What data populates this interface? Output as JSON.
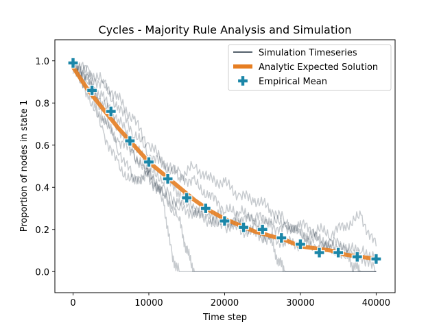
{
  "chart_data": {
    "type": "line",
    "title": "Cycles - Majority Rule Analysis and Simulation",
    "xlabel": "Time step",
    "ylabel": "Proportion of nodes in state 1",
    "xlim": [
      -2400,
      42500
    ],
    "ylim": [
      -0.1,
      1.1
    ],
    "xticks": [
      0,
      10000,
      20000,
      30000,
      40000
    ],
    "yticks": [
      0.0,
      0.2,
      0.4,
      0.6,
      0.8,
      1.0
    ],
    "xtick_labels": [
      "0",
      "10000",
      "20000",
      "30000",
      "40000"
    ],
    "ytick_labels": [
      "0.0",
      "0.2",
      "0.4",
      "0.6",
      "0.8",
      "1.0"
    ],
    "grid": false,
    "legend_position": "top-right",
    "legend": [
      {
        "label": "Simulation Timeseries",
        "kind": "line",
        "color": "#1c2b3a"
      },
      {
        "label": "Analytic Expected Solution",
        "kind": "thick-line",
        "color": "#e67e22"
      },
      {
        "label": "Empirical Mean",
        "kind": "marker",
        "color": "#1b86a8"
      }
    ],
    "simulation_series": [
      {
        "x": [
          0,
          2000,
          4000,
          6000,
          8000,
          10000,
          12000,
          13000,
          14000,
          16000,
          18000,
          20000,
          22000,
          24000,
          26000,
          28000,
          30000,
          32000,
          34000,
          36000,
          38000,
          40000
        ],
        "y": [
          0.98,
          0.9,
          0.82,
          0.72,
          0.6,
          0.5,
          0.32,
          0.08,
          0.0,
          0.0,
          0.0,
          0.0,
          0.0,
          0.0,
          0.0,
          0.0,
          0.0,
          0.0,
          0.0,
          0.0,
          0.0,
          0.0
        ]
      },
      {
        "x": [
          0,
          2000,
          4000,
          6000,
          8000,
          10000,
          12000,
          14000,
          15000,
          16000,
          18000,
          20000,
          22000,
          24000,
          26000,
          28000,
          30000,
          32000,
          34000,
          36000,
          38000,
          40000
        ],
        "y": [
          0.97,
          0.86,
          0.72,
          0.62,
          0.56,
          0.46,
          0.36,
          0.25,
          0.1,
          0.0,
          0.0,
          0.0,
          0.0,
          0.0,
          0.0,
          0.0,
          0.0,
          0.0,
          0.0,
          0.0,
          0.0,
          0.0
        ]
      },
      {
        "x": [
          0,
          2000,
          4000,
          6000,
          8000,
          10000,
          12000,
          14000,
          16000,
          18000,
          20000,
          22000,
          24000,
          26000,
          27000,
          28000,
          30000,
          32000,
          34000,
          36000,
          38000,
          40000
        ],
        "y": [
          0.99,
          0.92,
          0.74,
          0.58,
          0.44,
          0.46,
          0.38,
          0.33,
          0.3,
          0.28,
          0.25,
          0.22,
          0.2,
          0.15,
          0.06,
          0.0,
          0.0,
          0.0,
          0.0,
          0.0,
          0.0,
          0.0
        ]
      },
      {
        "x": [
          0,
          2000,
          4000,
          6000,
          8000,
          10000,
          12000,
          14000,
          16000,
          18000,
          20000,
          22000,
          24000,
          26000,
          28000,
          30000,
          32000,
          34000,
          36000,
          37000,
          38000,
          40000
        ],
        "y": [
          0.97,
          0.84,
          0.66,
          0.5,
          0.42,
          0.48,
          0.44,
          0.38,
          0.3,
          0.25,
          0.22,
          0.28,
          0.26,
          0.24,
          0.22,
          0.18,
          0.16,
          0.12,
          0.08,
          0.03,
          0.0,
          0.0
        ]
      },
      {
        "x": [
          0,
          2000,
          4000,
          6000,
          8000,
          10000,
          12000,
          14000,
          16000,
          18000,
          20000,
          22000,
          24000,
          26000,
          28000,
          30000,
          32000,
          34000,
          36000,
          38000,
          40000
        ],
        "y": [
          0.99,
          0.95,
          0.9,
          0.82,
          0.72,
          0.6,
          0.52,
          0.45,
          0.5,
          0.44,
          0.42,
          0.36,
          0.34,
          0.3,
          0.24,
          0.18,
          0.15,
          0.14,
          0.12,
          0.08,
          0.0
        ]
      },
      {
        "x": [
          0,
          2000,
          4000,
          6000,
          8000,
          10000,
          12000,
          14000,
          16000,
          18000,
          20000,
          22000,
          24000,
          26000,
          28000,
          30000,
          32000,
          34000,
          36000,
          38000,
          40000
        ],
        "y": [
          0.98,
          0.94,
          0.88,
          0.78,
          0.66,
          0.56,
          0.5,
          0.46,
          0.42,
          0.36,
          0.3,
          0.26,
          0.24,
          0.22,
          0.2,
          0.22,
          0.2,
          0.18,
          0.22,
          0.26,
          0.12
        ]
      },
      {
        "x": [
          0,
          2000,
          4000,
          6000,
          8000,
          10000,
          12000,
          14000,
          16000,
          18000,
          20000,
          22000,
          24000,
          26000,
          28000,
          30000,
          32000,
          34000,
          36000,
          38000,
          40000
        ],
        "y": [
          0.99,
          0.9,
          0.8,
          0.68,
          0.56,
          0.44,
          0.36,
          0.3,
          0.28,
          0.24,
          0.22,
          0.2,
          0.18,
          0.16,
          0.14,
          0.13,
          0.12,
          0.11,
          0.1,
          0.09,
          0.08
        ]
      }
    ],
    "analytic_series": {
      "x": [
        0,
        2000,
        4000,
        6000,
        8000,
        10000,
        12000,
        14000,
        16000,
        18000,
        20000,
        22000,
        24000,
        26000,
        28000,
        30000,
        32000,
        34000,
        36000,
        38000,
        40000
      ],
      "y": [
        0.97,
        0.86,
        0.77,
        0.68,
        0.6,
        0.52,
        0.46,
        0.4,
        0.34,
        0.29,
        0.25,
        0.22,
        0.19,
        0.17,
        0.15,
        0.12,
        0.11,
        0.1,
        0.08,
        0.07,
        0.06
      ]
    },
    "empirical_mean": {
      "x": [
        0,
        2500,
        5000,
        7500,
        10000,
        12500,
        15000,
        17500,
        20000,
        22500,
        25000,
        27500,
        30000,
        32500,
        35000,
        37500,
        40000
      ],
      "y": [
        0.99,
        0.86,
        0.76,
        0.62,
        0.52,
        0.44,
        0.35,
        0.3,
        0.24,
        0.21,
        0.2,
        0.16,
        0.13,
        0.09,
        0.09,
        0.07,
        0.06
      ]
    },
    "colors": {
      "simulation": "#1c2b3a",
      "analytic": "#e67e22",
      "marker": "#1b86a8"
    }
  }
}
